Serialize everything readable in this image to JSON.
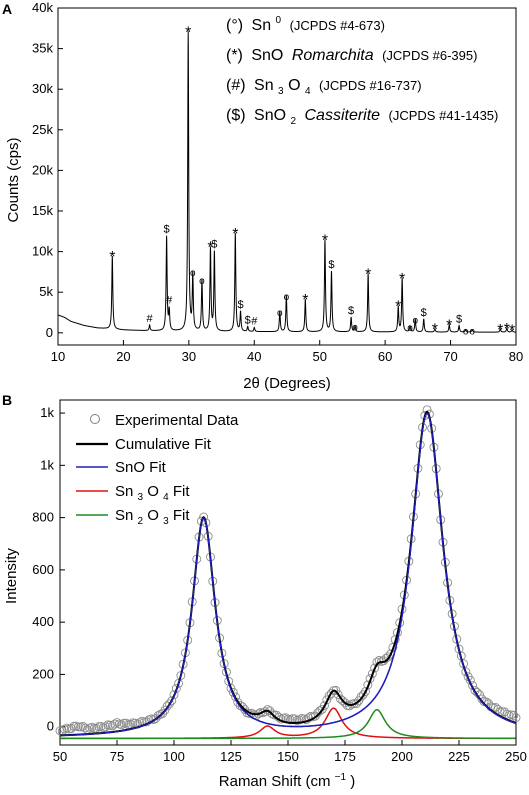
{
  "chart_data": [
    {
      "panel_label": "A",
      "type": "line",
      "xlabel_main": "2θ (Degrees)",
      "ylabel": "Counts (cps)",
      "xlim": [
        10,
        80
      ],
      "ylim": [
        -1500,
        40000
      ],
      "x_ticks": [
        "10",
        "20",
        "30",
        "40",
        "50",
        "60",
        "70",
        "80"
      ],
      "y_ticks": [
        "0",
        "5k",
        "10k",
        "15k",
        "20k",
        "25k",
        "30k",
        "35k",
        "40k"
      ],
      "legend": [
        {
          "symbol": "(°)",
          "phase": "Sn",
          "sup": "0",
          "name_tail": "",
          "ref": "(JCPDS #4-673)"
        },
        {
          "symbol": "(*)",
          "phase": "SnO",
          "name_tail": "Romarchita",
          "ref": "(JCPDS #6-395)"
        },
        {
          "symbol": "(#)",
          "phase": "Sn",
          "sub1": "3",
          "phase2": "O",
          "sub2": "4",
          "name_tail": "",
          "ref": "(JCPDS #16-737)"
        },
        {
          "symbol": "($)",
          "phase": "SnO",
          "sub1": "2",
          "name_tail": "Cassiterite",
          "ref": "(JCPDS #41-1435)"
        }
      ],
      "background": [
        [
          10,
          2200
        ],
        [
          11,
          1900
        ],
        [
          12,
          1400
        ],
        [
          14,
          900
        ],
        [
          16,
          600
        ],
        [
          20,
          350
        ],
        [
          24,
          250
        ],
        [
          28,
          200
        ],
        [
          35,
          150
        ],
        [
          45,
          120
        ],
        [
          60,
          100
        ],
        [
          70,
          90
        ],
        [
          80,
          80
        ]
      ],
      "peaks": [
        {
          "x": 18.3,
          "height": 9000,
          "label": "*"
        },
        {
          "x": 24.0,
          "height": 700,
          "label": "#"
        },
        {
          "x": 26.6,
          "height": 11600,
          "label": "$"
        },
        {
          "x": 27.0,
          "height": 2400,
          "label": "#"
        },
        {
          "x": 29.9,
          "height": 36800,
          "label": "*"
        },
        {
          "x": 30.6,
          "height": 6800,
          "label": "°"
        },
        {
          "x": 32.0,
          "height": 6300,
          "label": "°"
        },
        {
          "x": 33.3,
          "height": 10200,
          "label": "*"
        },
        {
          "x": 33.9,
          "height": 9700,
          "label": "$"
        },
        {
          "x": 37.1,
          "height": 12100,
          "label": "*"
        },
        {
          "x": 37.9,
          "height": 2400,
          "label": "$"
        },
        {
          "x": 39.0,
          "height": 600,
          "label": "$"
        },
        {
          "x": 40.0,
          "height": 500,
          "label": "#"
        },
        {
          "x": 43.9,
          "height": 2500,
          "label": "°"
        },
        {
          "x": 44.9,
          "height": 4500,
          "label": "°"
        },
        {
          "x": 47.8,
          "height": 4000,
          "label": "*"
        },
        {
          "x": 50.8,
          "height": 11300,
          "label": "*"
        },
        {
          "x": 51.8,
          "height": 7400,
          "label": "$"
        },
        {
          "x": 54.8,
          "height": 1800,
          "label": "$"
        },
        {
          "x": 55.4,
          "height": 700,
          "label": "°"
        },
        {
          "x": 57.4,
          "height": 7200,
          "label": "*"
        },
        {
          "x": 62.0,
          "height": 3100,
          "label": "*"
        },
        {
          "x": 62.6,
          "height": 6600,
          "label": "*"
        },
        {
          "x": 63.8,
          "height": 700,
          "label": "°"
        },
        {
          "x": 64.6,
          "height": 1600,
          "label": "°"
        },
        {
          "x": 65.9,
          "height": 1600,
          "label": "$"
        },
        {
          "x": 67.6,
          "height": 400,
          "label": "*"
        },
        {
          "x": 69.8,
          "height": 900,
          "label": "*"
        },
        {
          "x": 71.3,
          "height": 800,
          "label": "$"
        },
        {
          "x": 72.3,
          "height": 300,
          "label": "°"
        },
        {
          "x": 73.3,
          "height": 300,
          "label": "°"
        },
        {
          "x": 77.6,
          "height": 400,
          "label": "*"
        },
        {
          "x": 78.6,
          "height": 500,
          "label": "*"
        },
        {
          "x": 79.4,
          "height": 300,
          "label": "*"
        }
      ],
      "colors": {
        "line": "#000000",
        "markers": "#000000"
      }
    },
    {
      "panel_label": "B",
      "type": "scatter+line",
      "xlabel": "Raman Shift (cm",
      "xlabel_sup": "−1",
      "xlabel_tail": ")",
      "ylabel": "Intensity",
      "xlim": [
        50,
        250
      ],
      "ylim": [
        -70,
        1250
      ],
      "x_ticks": [
        "50",
        "75",
        "100",
        "125",
        "150",
        "175",
        "200",
        "225",
        "250"
      ],
      "y_ticks": [
        {
          "value": 0,
          "label": "0"
        },
        {
          "value": 200,
          "label": "200"
        },
        {
          "value": 400,
          "label": "400"
        },
        {
          "value": 600,
          "label": "600"
        },
        {
          "value": 800,
          "label": "800"
        },
        {
          "value": 1000,
          "label": "1k"
        },
        {
          "value": 1200,
          "label": "1k"
        }
      ],
      "legend": [
        {
          "name": "Experimental Data",
          "kind": "marker",
          "color": "#7f7f7f"
        },
        {
          "name": "Cumulative Fit",
          "kind": "line",
          "color": "#000000"
        },
        {
          "name": "SnO Fit",
          "kind": "line",
          "color": "#1f1fbf"
        },
        {
          "name_parts": [
            "Sn",
            "3",
            "O",
            "4",
            " Fit"
          ],
          "kind": "line",
          "color": "#e01010"
        },
        {
          "name_parts": [
            "Sn",
            "2",
            "O",
            "3",
            " Fit"
          ],
          "kind": "line",
          "color": "#1f8a1f"
        }
      ],
      "baseline": -45,
      "series": [
        {
          "name": "SnO Fit",
          "color": "#1f1fbf",
          "peaks": [
            {
              "x0": 113,
              "amp": 835,
              "w": 6.2
            },
            {
              "x0": 211,
              "amp": 1240,
              "w": 8.5
            }
          ]
        },
        {
          "name": "Sn3O4 Fit",
          "color": "#e01010",
          "peaks": [
            {
              "x0": 141,
              "amp": 45,
              "w": 4
            },
            {
              "x0": 170,
              "amp": 115,
              "w": 4.5
            }
          ]
        },
        {
          "name": "Sn2O3 Fit",
          "color": "#1f8a1f",
          "peaks": [
            {
              "x0": 189,
              "amp": 110,
              "w": 4.5
            }
          ]
        }
      ],
      "experimental_offsets": [
        [
          50,
          30
        ],
        [
          58,
          55
        ],
        [
          62,
          35
        ],
        [
          70,
          40
        ],
        [
          75,
          50
        ],
        [
          82,
          30
        ],
        [
          88,
          20
        ],
        [
          93,
          5
        ],
        [
          125,
          5
        ],
        [
          133,
          -5
        ],
        [
          140,
          0
        ],
        [
          150,
          25
        ],
        [
          155,
          20
        ],
        [
          160,
          15
        ],
        [
          175,
          -5
        ],
        [
          185,
          10
        ],
        [
          228,
          10
        ],
        [
          236,
          20
        ],
        [
          242,
          35
        ],
        [
          250,
          40
        ]
      ]
    }
  ]
}
